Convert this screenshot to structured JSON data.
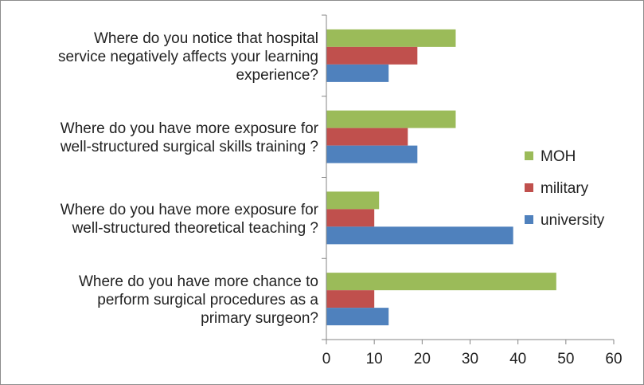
{
  "chart_data": {
    "type": "bar",
    "orientation": "horizontal",
    "categories": [
      [
        "Where do you notice that hospital",
        "service negatively affects your learning",
        "experience?"
      ],
      [
        "Where do you have more exposure for",
        "well-structured surgical skills training ?"
      ],
      [
        "Where do you have more exposure for",
        "well-structured theoretical teaching ?"
      ],
      [
        "Where do you have more chance to",
        "perform surgical procedures as a",
        "primary surgeon?"
      ]
    ],
    "series": [
      {
        "name": "MOH",
        "color": "#9bbb59",
        "values": [
          27,
          27,
          11,
          48
        ]
      },
      {
        "name": "military",
        "color": "#c0504d",
        "values": [
          19,
          17,
          10,
          10
        ]
      },
      {
        "name": "university",
        "color": "#4f81bd",
        "values": [
          13,
          19,
          39,
          13
        ]
      }
    ],
    "xlim": [
      0,
      60
    ],
    "xticks": [
      0,
      10,
      20,
      30,
      40,
      50,
      60
    ],
    "grid": false,
    "legend_position": "right"
  }
}
